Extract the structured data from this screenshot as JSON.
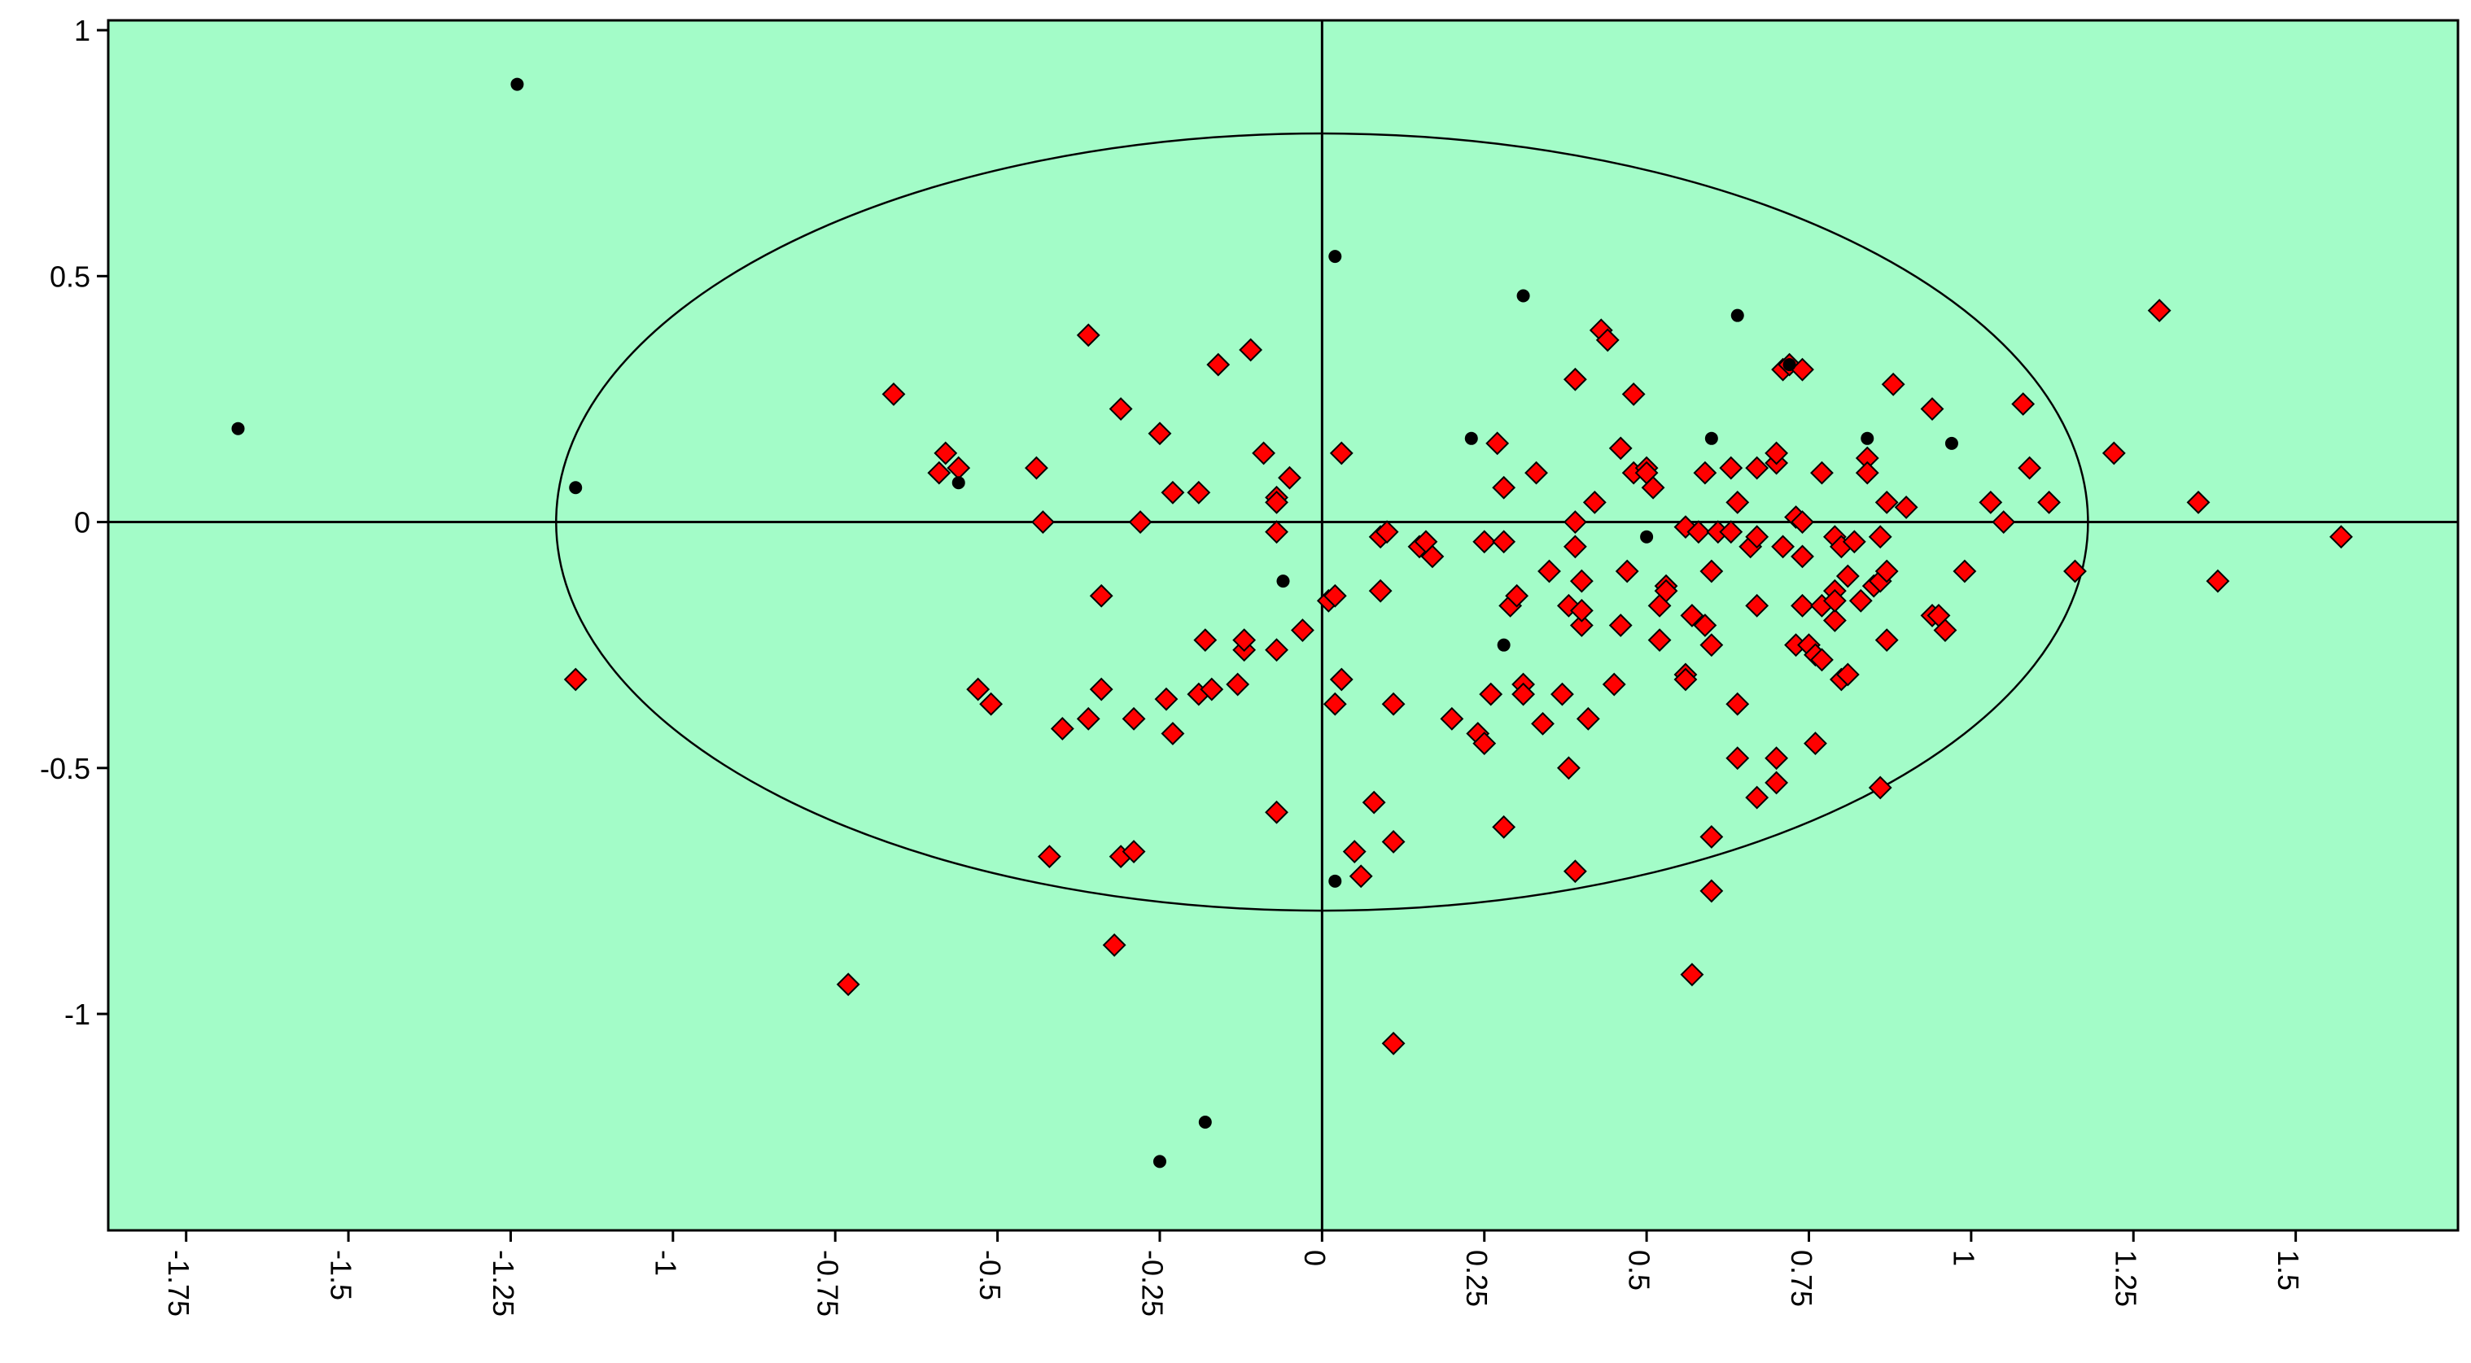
{
  "chart_data": {
    "type": "scatter",
    "title": "",
    "xlabel": "",
    "ylabel": "",
    "xlim": [
      -1.87,
      1.75
    ],
    "ylim": [
      -1.44,
      1.02
    ],
    "x_ticks": [
      {
        "value": -1.75,
        "label": "-1.75"
      },
      {
        "value": -1.5,
        "label": "-1.5"
      },
      {
        "value": -1.25,
        "label": "-1.25"
      },
      {
        "value": -1,
        "label": "-1"
      },
      {
        "value": -0.75,
        "label": "-0.75"
      },
      {
        "value": -0.5,
        "label": "-0.5"
      },
      {
        "value": -0.25,
        "label": "-0.25"
      },
      {
        "value": 0,
        "label": "0"
      },
      {
        "value": 0.25,
        "label": "0.25"
      },
      {
        "value": 0.5,
        "label": "0.5"
      },
      {
        "value": 0.75,
        "label": "0.75"
      },
      {
        "value": 1,
        "label": "1"
      },
      {
        "value": 1.25,
        "label": "1.25"
      },
      {
        "value": 1.5,
        "label": "1.5"
      }
    ],
    "y_ticks": [
      {
        "value": 1,
        "label": "1"
      },
      {
        "value": 0.5,
        "label": "0.5"
      },
      {
        "value": 0,
        "label": "0"
      },
      {
        "value": -0.5,
        "label": "-0.5"
      },
      {
        "value": -1,
        "label": "-1"
      }
    ],
    "grid": false,
    "background_color": "#a3fcc8",
    "zero_lines": true,
    "ellipse": {
      "cx": 0.0,
      "cy": 0.0,
      "rx": 1.18,
      "ry": 0.79
    },
    "series": [
      {
        "marker": "diamond",
        "color": "#ff0000",
        "points": [
          [
            -0.66,
            0.26
          ],
          [
            -0.59,
            0.1
          ],
          [
            -0.58,
            0.14
          ],
          [
            -0.56,
            0.11
          ],
          [
            -0.53,
            -0.34
          ],
          [
            -0.51,
            -0.37
          ],
          [
            -0.44,
            0.11
          ],
          [
            -0.43,
            0.0
          ],
          [
            -0.42,
            -0.68
          ],
          [
            -0.4,
            -0.42
          ],
          [
            -0.36,
            0.38
          ],
          [
            -0.36,
            -0.4
          ],
          [
            -0.34,
            -0.15
          ],
          [
            -0.34,
            -0.34
          ],
          [
            -0.31,
            0.23
          ],
          [
            -0.31,
            -0.68
          ],
          [
            -0.29,
            -0.67
          ],
          [
            -0.29,
            -0.4
          ],
          [
            -0.28,
            0.0
          ],
          [
            -0.25,
            0.18
          ],
          [
            -0.24,
            -0.36
          ],
          [
            -0.23,
            -0.43
          ],
          [
            -0.23,
            0.06
          ],
          [
            -0.19,
            -0.35
          ],
          [
            -0.19,
            0.06
          ],
          [
            -0.18,
            -0.24
          ],
          [
            -0.17,
            -0.34
          ],
          [
            -0.16,
            0.32
          ],
          [
            -0.13,
            -0.33
          ],
          [
            -0.12,
            -0.26
          ],
          [
            -0.12,
            -0.24
          ],
          [
            -0.11,
            0.35
          ],
          [
            -0.09,
            0.14
          ],
          [
            -0.07,
            0.05
          ],
          [
            -0.07,
            0.04
          ],
          [
            -0.07,
            -0.02
          ],
          [
            -0.07,
            -0.26
          ],
          [
            -0.07,
            -0.59
          ],
          [
            -0.05,
            0.09
          ],
          [
            -0.03,
            -0.22
          ],
          [
            0.01,
            -0.16
          ],
          [
            0.02,
            -0.37
          ],
          [
            0.02,
            -0.15
          ],
          [
            0.03,
            0.14
          ],
          [
            0.03,
            -0.32
          ],
          [
            0.05,
            -0.67
          ],
          [
            0.06,
            -0.72
          ],
          [
            0.08,
            -0.57
          ],
          [
            0.09,
            -0.03
          ],
          [
            0.09,
            -0.14
          ],
          [
            0.1,
            -0.02
          ],
          [
            0.11,
            -0.37
          ],
          [
            0.11,
            -0.65
          ],
          [
            0.11,
            -1.06
          ],
          [
            0.15,
            -0.05
          ],
          [
            0.16,
            -0.04
          ],
          [
            0.17,
            -0.07
          ],
          [
            0.2,
            -0.4
          ],
          [
            0.24,
            -0.43
          ],
          [
            0.25,
            -0.45
          ],
          [
            0.25,
            -0.04
          ],
          [
            0.26,
            -0.35
          ],
          [
            0.27,
            0.16
          ],
          [
            0.28,
            0.07
          ],
          [
            0.28,
            -0.62
          ],
          [
            0.28,
            -0.04
          ],
          [
            0.29,
            -0.17
          ],
          [
            0.3,
            -0.15
          ],
          [
            0.31,
            -0.33
          ],
          [
            0.31,
            -0.35
          ],
          [
            0.33,
            0.1
          ],
          [
            0.34,
            -0.41
          ],
          [
            0.35,
            -0.1
          ],
          [
            0.37,
            -0.35
          ],
          [
            0.38,
            -0.5
          ],
          [
            0.38,
            -0.17
          ],
          [
            0.39,
            0.29
          ],
          [
            0.39,
            0.0
          ],
          [
            0.39,
            -0.05
          ],
          [
            0.39,
            -0.71
          ],
          [
            0.4,
            -0.21
          ],
          [
            0.4,
            -0.12
          ],
          [
            0.4,
            -0.18
          ],
          [
            0.41,
            -0.4
          ],
          [
            0.42,
            0.04
          ],
          [
            0.43,
            0.39
          ],
          [
            0.44,
            0.37
          ],
          [
            0.45,
            -0.33
          ],
          [
            0.46,
            0.15
          ],
          [
            0.46,
            -0.21
          ],
          [
            0.47,
            -0.1
          ],
          [
            0.48,
            0.26
          ],
          [
            0.48,
            0.1
          ],
          [
            0.5,
            0.11
          ],
          [
            0.5,
            0.1
          ],
          [
            0.51,
            0.07
          ],
          [
            0.52,
            -0.24
          ],
          [
            0.52,
            -0.17
          ],
          [
            0.53,
            -0.13
          ],
          [
            0.53,
            -0.14
          ],
          [
            0.56,
            -0.01
          ],
          [
            0.56,
            -0.31
          ],
          [
            0.56,
            -0.32
          ],
          [
            0.57,
            -0.19
          ],
          [
            0.57,
            -0.92
          ],
          [
            0.58,
            -0.02
          ],
          [
            0.59,
            -0.21
          ],
          [
            0.59,
            0.1
          ],
          [
            0.6,
            -0.1
          ],
          [
            0.6,
            -0.25
          ],
          [
            0.6,
            -0.64
          ],
          [
            0.6,
            -0.75
          ],
          [
            0.61,
            -0.02
          ],
          [
            0.63,
            0.11
          ],
          [
            0.63,
            -0.02
          ],
          [
            0.64,
            -0.48
          ],
          [
            0.64,
            -0.37
          ],
          [
            0.64,
            0.04
          ],
          [
            0.66,
            -0.05
          ],
          [
            0.67,
            0.11
          ],
          [
            0.67,
            -0.17
          ],
          [
            0.67,
            -0.56
          ],
          [
            0.67,
            -0.03
          ],
          [
            0.7,
            -0.53
          ],
          [
            0.7,
            -0.48
          ],
          [
            0.7,
            0.12
          ],
          [
            0.7,
            0.14
          ],
          [
            0.71,
            -0.05
          ],
          [
            0.71,
            0.31
          ],
          [
            0.72,
            0.32
          ],
          [
            0.73,
            0.01
          ],
          [
            0.73,
            -0.25
          ],
          [
            0.74,
            0.0
          ],
          [
            0.74,
            0.31
          ],
          [
            0.74,
            -0.07
          ],
          [
            0.74,
            -0.17
          ],
          [
            0.75,
            -0.25
          ],
          [
            0.76,
            -0.27
          ],
          [
            0.76,
            -0.45
          ],
          [
            0.77,
            0.1
          ],
          [
            0.77,
            -0.17
          ],
          [
            0.77,
            -0.28
          ],
          [
            0.79,
            -0.14
          ],
          [
            0.79,
            -0.2
          ],
          [
            0.79,
            -0.03
          ],
          [
            0.79,
            -0.16
          ],
          [
            0.8,
            -0.05
          ],
          [
            0.8,
            -0.32
          ],
          [
            0.81,
            -0.11
          ],
          [
            0.81,
            -0.31
          ],
          [
            0.82,
            -0.04
          ],
          [
            0.83,
            -0.16
          ],
          [
            0.84,
            0.13
          ],
          [
            0.84,
            0.1
          ],
          [
            0.85,
            -0.13
          ],
          [
            0.86,
            -0.03
          ],
          [
            0.86,
            -0.12
          ],
          [
            0.86,
            -0.54
          ],
          [
            0.87,
            0.04
          ],
          [
            0.87,
            -0.1
          ],
          [
            0.87,
            -0.24
          ],
          [
            0.88,
            0.28
          ],
          [
            0.9,
            0.03
          ],
          [
            0.94,
            0.23
          ],
          [
            0.94,
            -0.19
          ],
          [
            0.95,
            -0.19
          ],
          [
            0.96,
            -0.22
          ],
          [
            0.99,
            -0.1
          ],
          [
            1.03,
            0.04
          ],
          [
            1.05,
            0.0
          ],
          [
            1.08,
            0.24
          ],
          [
            1.09,
            0.11
          ],
          [
            1.12,
            0.04
          ],
          [
            1.16,
            -0.1
          ],
          [
            1.22,
            0.14
          ],
          [
            1.29,
            0.43
          ],
          [
            1.35,
            0.04
          ],
          [
            1.38,
            -0.12
          ],
          [
            1.57,
            -0.03
          ],
          [
            -1.15,
            -0.32
          ],
          [
            -0.73,
            -0.94
          ],
          [
            -0.32,
            -0.86
          ]
        ]
      },
      {
        "marker": "dot",
        "color": "#000000",
        "points": [
          [
            -1.67,
            0.19
          ],
          [
            -1.24,
            0.89
          ],
          [
            -1.15,
            0.07
          ],
          [
            -0.56,
            0.08
          ],
          [
            -0.06,
            -0.12
          ],
          [
            0.02,
            0.54
          ],
          [
            0.02,
            -0.73
          ],
          [
            0.23,
            0.17
          ],
          [
            0.28,
            -0.25
          ],
          [
            0.31,
            0.46
          ],
          [
            0.5,
            -0.03
          ],
          [
            0.6,
            0.17
          ],
          [
            0.64,
            0.42
          ],
          [
            0.72,
            0.32
          ],
          [
            0.84,
            0.17
          ],
          [
            0.97,
            0.16
          ],
          [
            -0.18,
            -1.22
          ],
          [
            -0.25,
            -1.3
          ]
        ]
      }
    ]
  }
}
